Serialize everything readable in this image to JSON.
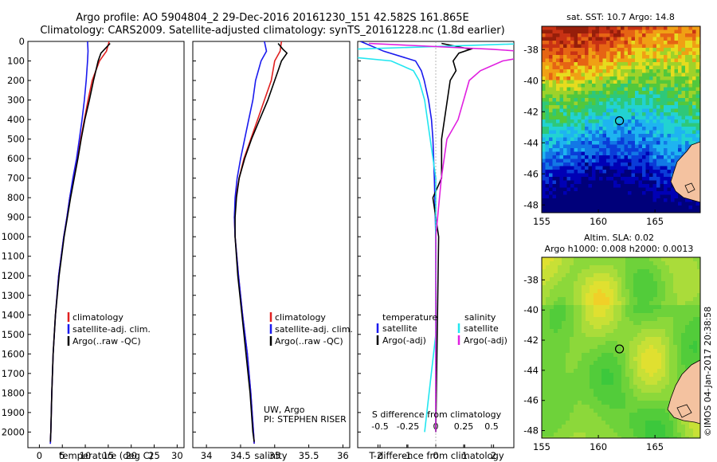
{
  "header": {
    "title_line1": "Argo profile: AO 5904804_2 29-Dec-2016 20161230_151 42.582S 161.865E",
    "title_line2": "Climatology: CARS2009. Satellite-adjusted climatology: synTS_20161228.nc (1.8d earlier)"
  },
  "colors": {
    "climatology": "#e02020",
    "satellite": "#1a1aee",
    "argo": "#000000",
    "satellite_salinity": "#22e6f0",
    "argo_salinity": "#e020e0"
  },
  "chart_data": [
    {
      "type": "line",
      "xlabel": "temperature (deg C)",
      "xlim": [
        -2.5,
        31.5
      ],
      "xticks": [
        "0",
        "5",
        "10",
        "15",
        "20",
        "25",
        "30"
      ],
      "ylim": [
        0,
        2080
      ],
      "yticks": [
        "0",
        "100",
        "200",
        "300",
        "400",
        "500",
        "600",
        "700",
        "800",
        "900",
        "1000",
        "1100",
        "1200",
        "1300",
        "1400",
        "1500",
        "1600",
        "1700",
        "1800",
        "1900",
        "2000"
      ],
      "legend": [
        "climatology",
        "satellite-adj. clim.",
        "Argo(..raw -QC)"
      ],
      "series": [
        {
          "name": "climatology",
          "pressure": [
            0,
            50,
            100,
            200,
            300,
            400,
            500,
            600,
            700,
            800,
            900,
            1000,
            1200,
            1400,
            1600,
            1800,
            2000,
            2060
          ],
          "values": [
            15.2,
            14.6,
            13.1,
            11.5,
            10.6,
            9.8,
            9.0,
            8.3,
            7.4,
            6.6,
            6.0,
            5.3,
            4.2,
            3.5,
            3.0,
            2.7,
            2.5,
            2.4
          ]
        },
        {
          "name": "satellite-adj. clim.",
          "pressure": [
            0,
            50,
            100,
            200,
            300,
            400,
            500,
            600,
            700,
            800,
            900,
            1000,
            1200,
            1400,
            1600,
            1800,
            2000,
            2060
          ],
          "values": [
            10.5,
            10.6,
            10.5,
            10.2,
            9.8,
            9.3,
            8.7,
            8.1,
            7.3,
            6.6,
            6.0,
            5.3,
            4.2,
            3.5,
            3.0,
            2.7,
            2.5,
            2.4
          ]
        },
        {
          "name": "Argo(..raw -QC)",
          "pressure": [
            10,
            40,
            60,
            100,
            150,
            200,
            300,
            400,
            500,
            600,
            700,
            800,
            900,
            1000,
            1200,
            1400,
            1600,
            1800,
            2000,
            2050
          ],
          "values": [
            15.4,
            14.2,
            13.4,
            12.8,
            12.3,
            11.8,
            10.9,
            9.9,
            9.1,
            8.4,
            7.6,
            6.8,
            6.1,
            5.4,
            4.3,
            3.5,
            3.0,
            2.7,
            2.5,
            2.4
          ]
        }
      ]
    },
    {
      "type": "line",
      "xlabel": "salinity",
      "xlim": [
        33.8,
        36.1
      ],
      "xticks": [
        "34",
        "34.5",
        "35",
        "35.5",
        "36"
      ],
      "ylim": [
        0,
        2080
      ],
      "legend": [
        "climatology",
        "satellite-adj. clim.",
        "Argo(..raw -QC)"
      ],
      "annotation": [
        "UW, Argo",
        "PI: STEPHEN RISER"
      ],
      "series": [
        {
          "name": "climatology",
          "pressure": [
            0,
            50,
            100,
            200,
            300,
            400,
            500,
            600,
            700,
            800,
            900,
            1000,
            1200,
            1400,
            1600,
            1800,
            2000,
            2060
          ],
          "values": [
            35.1,
            35.08,
            35.0,
            34.95,
            34.85,
            34.75,
            34.65,
            34.55,
            34.48,
            34.43,
            34.41,
            34.42,
            34.47,
            34.53,
            34.6,
            34.65,
            34.69,
            34.7
          ]
        },
        {
          "name": "satellite-adj. clim.",
          "pressure": [
            0,
            50,
            100,
            200,
            300,
            400,
            500,
            600,
            700,
            800,
            900,
            1000,
            1200,
            1400,
            1600,
            1800,
            2000,
            2060
          ],
          "values": [
            34.85,
            34.88,
            34.8,
            34.72,
            34.68,
            34.62,
            34.56,
            34.5,
            34.45,
            34.42,
            34.41,
            34.42,
            34.47,
            34.53,
            34.6,
            34.65,
            34.69,
            34.7
          ]
        },
        {
          "name": "Argo(..raw -QC)",
          "pressure": [
            10,
            40,
            60,
            100,
            150,
            200,
            300,
            400,
            500,
            600,
            700,
            800,
            900,
            1000,
            1200,
            1400,
            1600,
            1800,
            2000,
            2050
          ],
          "values": [
            35.05,
            35.12,
            35.18,
            35.1,
            35.05,
            35.0,
            34.9,
            34.78,
            34.66,
            34.56,
            34.48,
            34.44,
            34.42,
            34.42,
            34.46,
            34.52,
            34.58,
            34.64,
            34.68,
            34.7
          ]
        }
      ]
    },
    {
      "type": "line",
      "xlabel": "T difference from climatology",
      "toplabel": "S difference from climatology",
      "xlim": [
        -2.7,
        2.7
      ],
      "xticks": [
        "-2",
        "-1",
        "0",
        "1",
        "2"
      ],
      "sticks": [
        "-0.5",
        "-0.25",
        "0",
        "0.25",
        "0.5"
      ],
      "ylim": [
        0,
        2080
      ],
      "legend_headers": [
        "temperature",
        "salinity"
      ],
      "legend": [
        "satellite",
        "Argo(-adj)",
        "satellite",
        "Argo(-adj)"
      ],
      "series": [
        {
          "name": "satellite",
          "pressure": [
            0,
            50,
            100,
            150,
            200,
            300,
            400,
            500,
            700,
            1000,
            1500,
            2000
          ],
          "values": [
            -2.6,
            -1.8,
            -0.7,
            -0.5,
            -0.4,
            -0.25,
            -0.15,
            -0.1,
            -0.05,
            0,
            0,
            0
          ]
        },
        {
          "name": "Argo(-adj)",
          "pressure": [
            10,
            40,
            60,
            100,
            150,
            200,
            300,
            400,
            500,
            700,
            800,
            1000,
            1500,
            2000
          ],
          "values": [
            0.2,
            1.2,
            0.8,
            0.6,
            0.7,
            0.5,
            0.4,
            0.3,
            0.2,
            0.2,
            -0.1,
            0.1,
            0.05,
            0
          ]
        },
        {
          "name": "satellite",
          "pressure": [
            0,
            50,
            100,
            150,
            200,
            300,
            500,
            700,
            1000,
            1500,
            2000
          ],
          "values": [
            1.4,
            -1.3,
            -0.4,
            -0.2,
            -0.15,
            -0.1,
            -0.05,
            0,
            0,
            0,
            -0.1
          ]
        },
        {
          "name": "Argo(-adj)",
          "pressure": [
            10,
            40,
            60,
            100,
            150,
            200,
            300,
            400,
            500,
            700,
            1000,
            1500,
            2000
          ],
          "values": [
            -0.6,
            0.5,
            1.0,
            0.6,
            0.4,
            0.3,
            0.25,
            0.2,
            0.1,
            0.05,
            0,
            0,
            0
          ]
        }
      ]
    },
    {
      "type": "heatmap",
      "title": "sat. SST: 10.7 Argo: 14.8",
      "xticks": [
        "155",
        "160",
        "165"
      ],
      "yticks": [
        "-38",
        "-40",
        "-42",
        "-44",
        "-46",
        "-48"
      ],
      "xlim": [
        155,
        169
      ],
      "ylim": [
        -48.5,
        -36.5
      ],
      "marker": {
        "lon": 161.865,
        "lat": -42.582
      }
    },
    {
      "type": "heatmap",
      "title_line1": "Altim. SLA: 0.02",
      "title_line2": "Argo h1000: 0.008 h2000: 0.0013",
      "xticks": [
        "155",
        "160",
        "165"
      ],
      "yticks": [
        "-38",
        "-40",
        "-42",
        "-44",
        "-46",
        "-48"
      ],
      "xlim": [
        155,
        169
      ],
      "ylim": [
        -48.5,
        -36.5
      ],
      "marker": {
        "lon": 161.865,
        "lat": -42.582
      }
    }
  ],
  "credit": "©IMOS 04-Jan-2017 20:38:58"
}
